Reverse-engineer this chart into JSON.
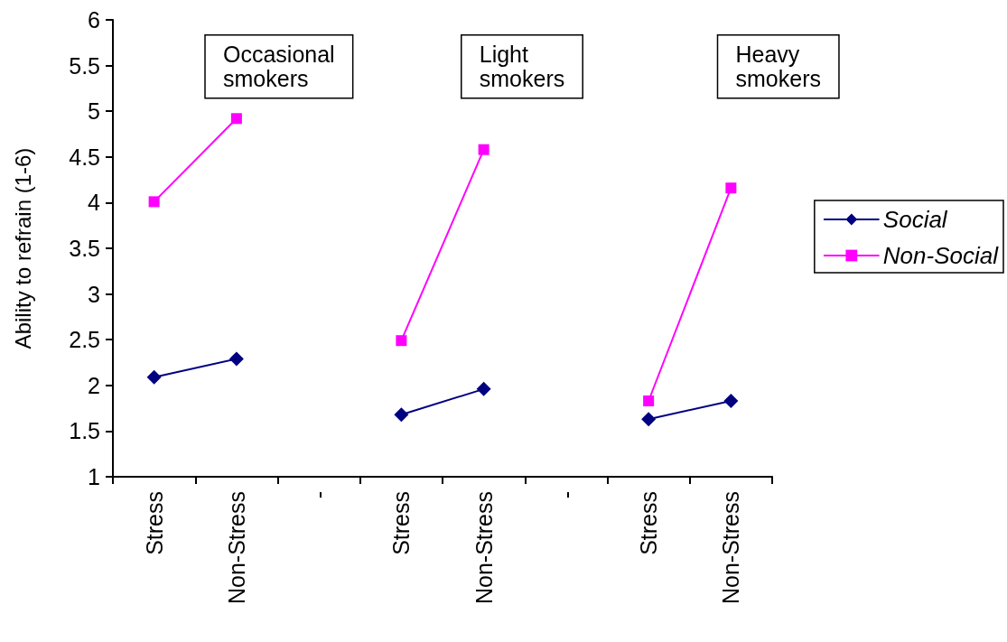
{
  "chart_data": {
    "type": "line",
    "ylabel": "Ability to refrain (1-6)",
    "categories": [
      "Stress",
      "Non-Stress",
      "-",
      "Stress",
      "Non-Stress",
      "-",
      "Stress",
      "Non-Stress"
    ],
    "series": [
      {
        "name": "Social",
        "color": "#000080",
        "marker": "diamond",
        "values": [
          2.09,
          2.29,
          null,
          1.68,
          1.96,
          null,
          1.63,
          1.83
        ]
      },
      {
        "name": "Non-Social",
        "color": "#ff00ff",
        "marker": "square",
        "values": [
          4.01,
          4.92,
          null,
          2.49,
          4.58,
          null,
          1.83,
          4.16
        ]
      }
    ],
    "annotations": [
      "Occasional smokers",
      "Light smokers",
      "Heavy smokers"
    ],
    "ylim": [
      1,
      6
    ],
    "yticks": [
      1,
      1.5,
      2,
      2.5,
      3,
      3.5,
      4,
      4.5,
      5,
      5.5,
      6
    ],
    "grid": false,
    "legend": "right",
    "line_style": "solid"
  }
}
